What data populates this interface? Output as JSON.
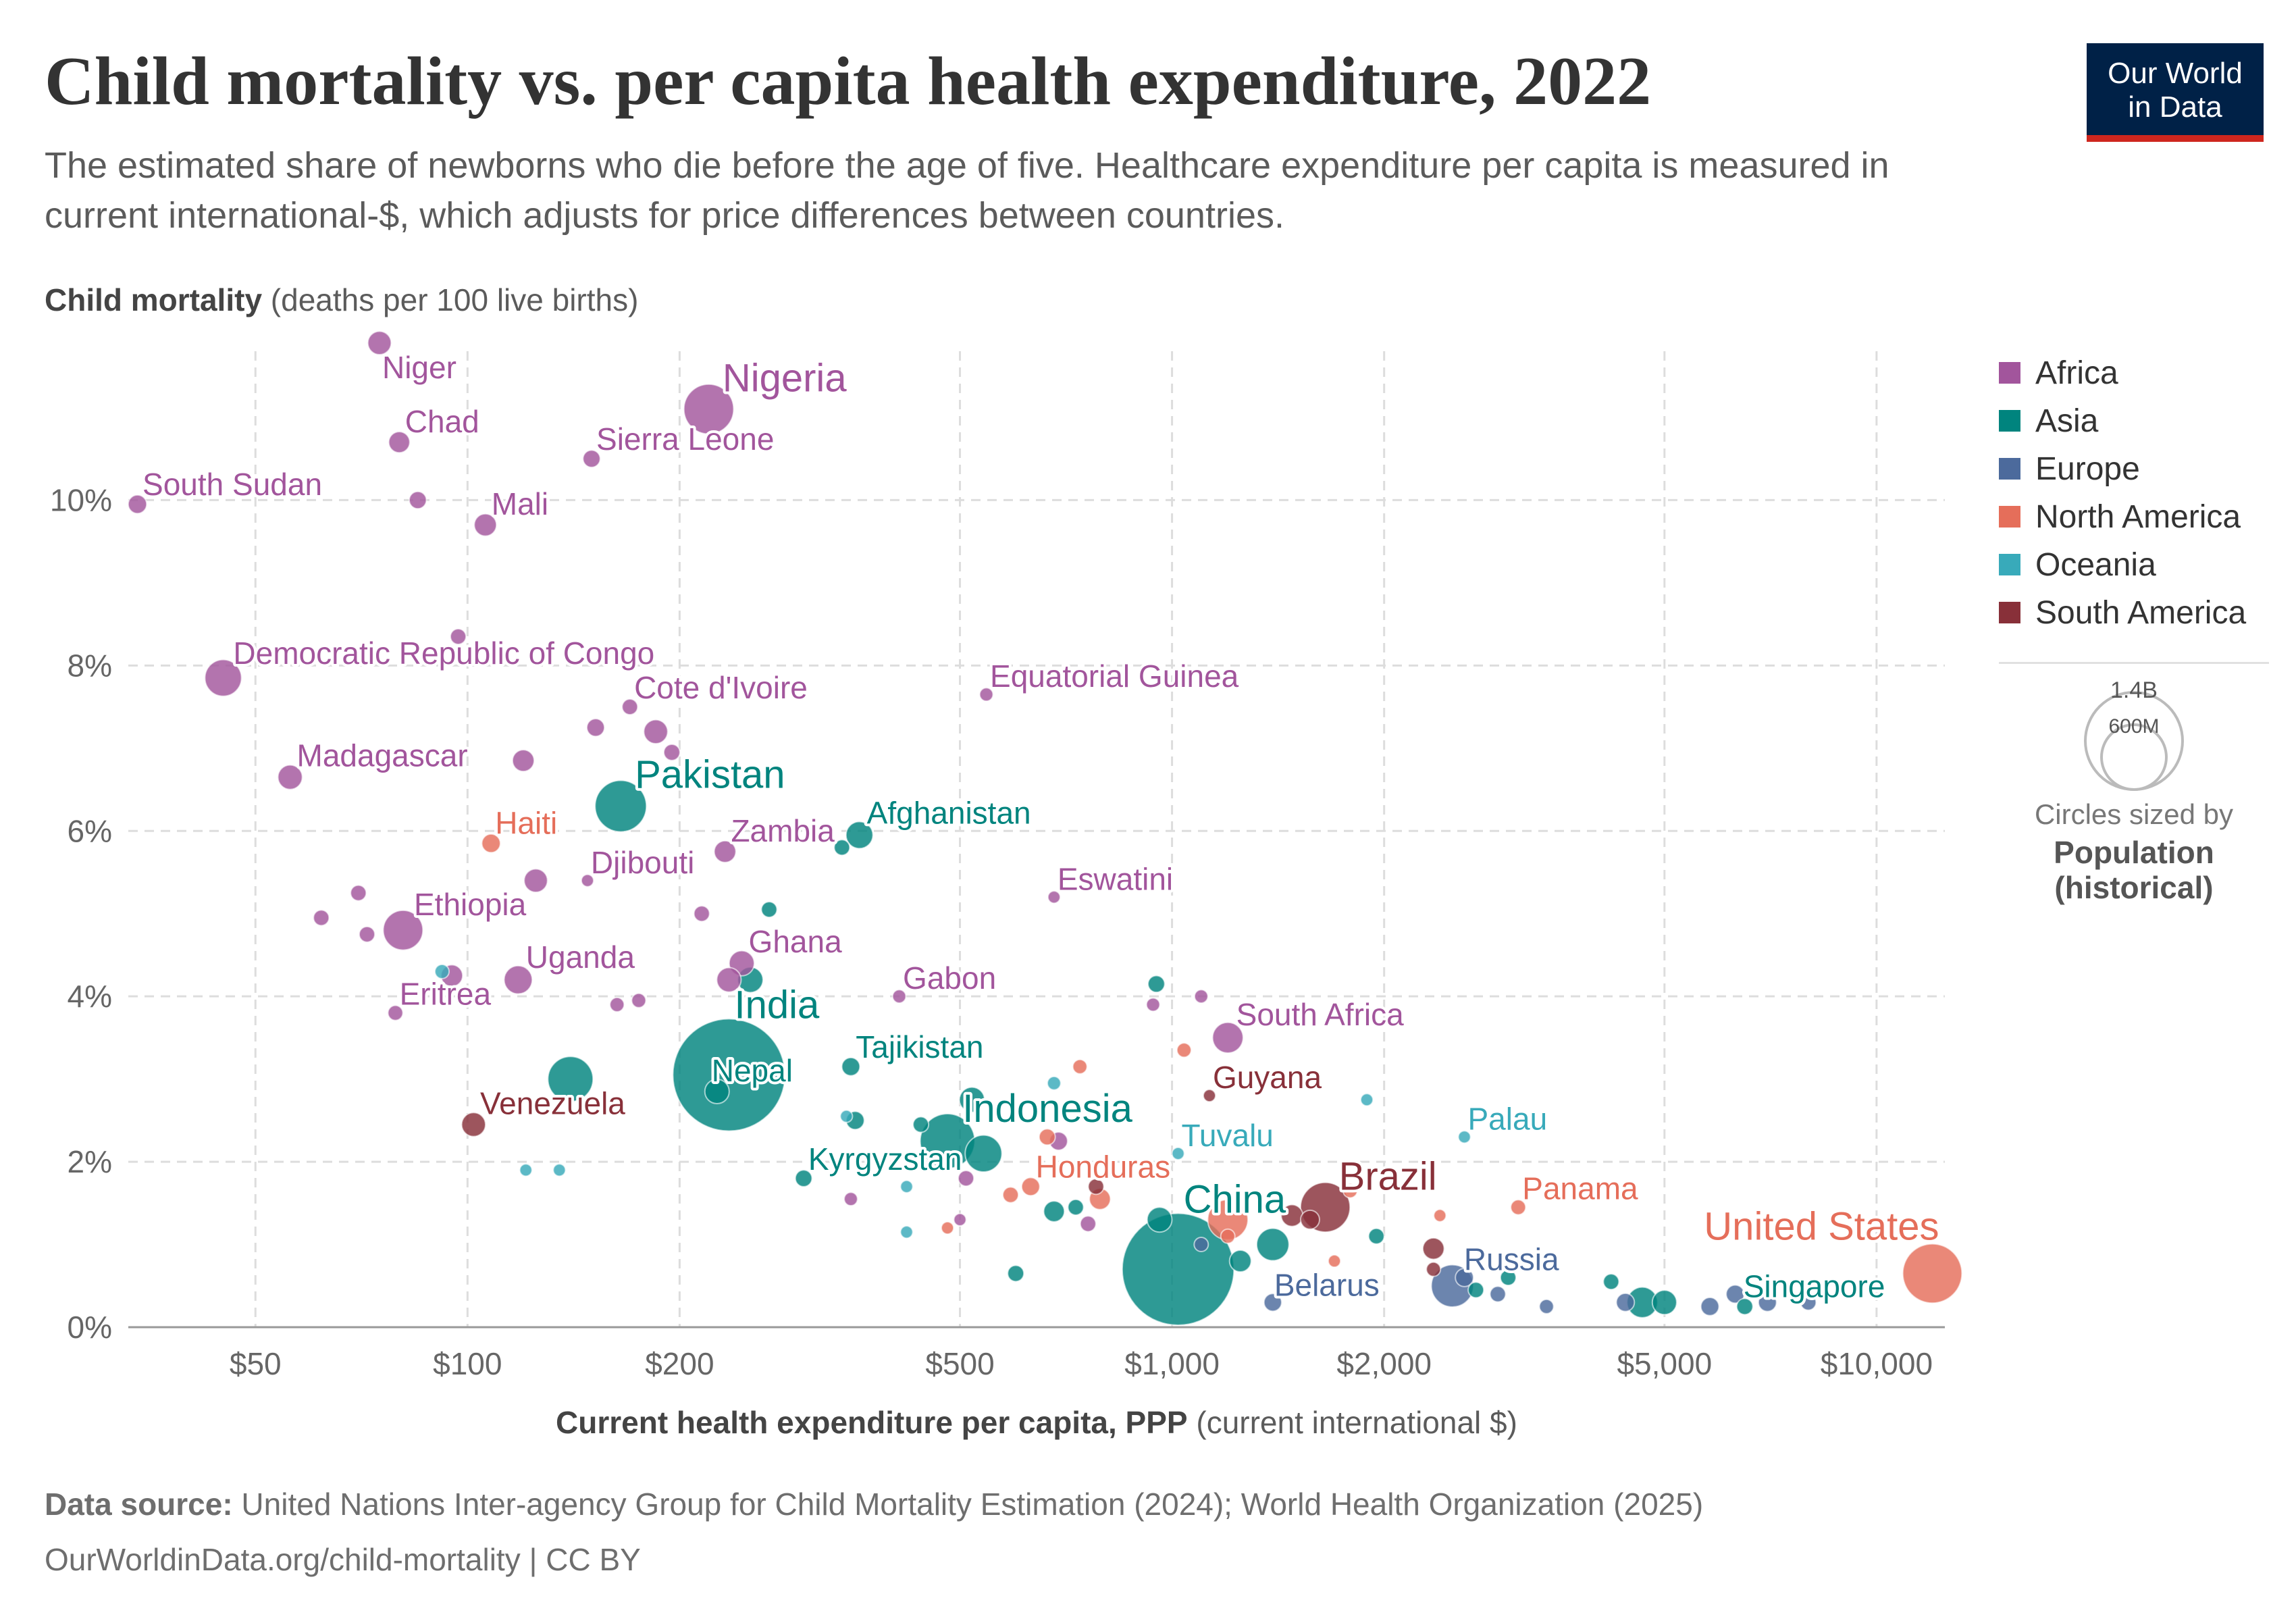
{
  "header": {
    "title": "Child mortality vs. per capita health expenditure, 2022",
    "subtitle": "The estimated share of newborns who die before the age of five. Healthcare expenditure per capita is measured in current international-$, which adjusts for price differences between countries."
  },
  "logo": {
    "line1": "Our World",
    "line2": "in Data"
  },
  "axes": {
    "y_title_bold": "Child mortality",
    "y_title_rest": " (deaths per 100 live births)",
    "x_title_bold": "Current health expenditure per capita, PPP",
    "x_title_rest": " (current international $)"
  },
  "legend": {
    "items": [
      {
        "label": "Africa",
        "color": "#a2559c"
      },
      {
        "label": "Asia",
        "color": "#00847e"
      },
      {
        "label": "Europe",
        "color": "#4c6a9c"
      },
      {
        "label": "North America",
        "color": "#e56e5a"
      },
      {
        "label": "Oceania",
        "color": "#38aaba"
      },
      {
        "label": "South America",
        "color": "#883039"
      }
    ],
    "size_max": "1.4B",
    "size_mid": "600M",
    "size_caption": "Circles sized by",
    "size_variable_line1": "Population",
    "size_variable_line2": "(historical)"
  },
  "footer": {
    "source_label": "Data source:",
    "source_text": " United Nations Inter-agency Group for Child Mortality Estimation (2024); World Health Organization (2025)",
    "url": "OurWorldinData.org/child-mortality | CC BY"
  },
  "chart_data": {
    "type": "scatter",
    "x_scale": "log",
    "xlim": [
      33,
      12500
    ],
    "ylim": [
      0,
      11.8
    ],
    "grid": true,
    "legend_position": "right",
    "x_ticks": [
      {
        "value": 50,
        "label": "$50"
      },
      {
        "value": 100,
        "label": "$100"
      },
      {
        "value": 200,
        "label": "$200"
      },
      {
        "value": 500,
        "label": "$500"
      },
      {
        "value": 1000,
        "label": "$1,000"
      },
      {
        "value": 2000,
        "label": "$2,000"
      },
      {
        "value": 5000,
        "label": "$5,000"
      },
      {
        "value": 10000,
        "label": "$10,000"
      }
    ],
    "y_ticks": [
      {
        "value": 0,
        "label": "0%"
      },
      {
        "value": 2,
        "label": "2%"
      },
      {
        "value": 4,
        "label": "4%"
      },
      {
        "value": 6,
        "label": "6%"
      },
      {
        "value": 8,
        "label": "8%"
      },
      {
        "value": 10,
        "label": "10%"
      }
    ],
    "points": [
      {
        "label": "Niger",
        "region": "Africa",
        "x": 75,
        "y": 11.9,
        "pop": 26
      },
      {
        "label": "Nigeria",
        "region": "Africa",
        "x": 220,
        "y": 11.1,
        "pop": 219
      },
      {
        "label": "Chad",
        "region": "Africa",
        "x": 80,
        "y": 10.7,
        "pop": 18
      },
      {
        "label": "Sierra Leone",
        "region": "Africa",
        "x": 150,
        "y": 10.5,
        "pop": 8
      },
      {
        "label": "South Sudan",
        "region": "Africa",
        "x": 34,
        "y": 9.95,
        "pop": 11
      },
      {
        "label": "",
        "region": "Africa",
        "x": 85,
        "y": 10.0,
        "pop": 8
      },
      {
        "label": "Mali",
        "region": "Africa",
        "x": 106,
        "y": 9.7,
        "pop": 22
      },
      {
        "label": "Democratic Republic of Congo",
        "region": "Africa",
        "x": 45,
        "y": 7.85,
        "pop": 99
      },
      {
        "label": "",
        "region": "Africa",
        "x": 97,
        "y": 8.35,
        "pop": 5
      },
      {
        "label": "Equatorial Guinea",
        "region": "Africa",
        "x": 545,
        "y": 7.65,
        "pop": 2
      },
      {
        "label": "Cote d'Ivoire",
        "region": "Africa",
        "x": 170,
        "y": 7.5,
        "pop": 5
      },
      {
        "label": "",
        "region": "Africa",
        "x": 152,
        "y": 7.25,
        "pop": 9
      },
      {
        "label": "",
        "region": "Africa",
        "x": 185,
        "y": 7.2,
        "pop": 28
      },
      {
        "label": "",
        "region": "Africa",
        "x": 195,
        "y": 6.95,
        "pop": 6
      },
      {
        "label": "Madagascar",
        "region": "Africa",
        "x": 56,
        "y": 6.65,
        "pop": 30
      },
      {
        "label": "",
        "region": "Africa",
        "x": 120,
        "y": 6.85,
        "pop": 20
      },
      {
        "label": "Pakistan",
        "region": "Asia",
        "x": 165,
        "y": 6.3,
        "pop": 236
      },
      {
        "label": "Haiti",
        "region": "North America",
        "x": 108,
        "y": 5.85,
        "pop": 11
      },
      {
        "label": "Zambia",
        "region": "Africa",
        "x": 232,
        "y": 5.75,
        "pop": 20
      },
      {
        "label": "Afghanistan",
        "region": "Asia",
        "x": 360,
        "y": 5.95,
        "pop": 41
      },
      {
        "label": "",
        "region": "Asia",
        "x": 340,
        "y": 5.8,
        "pop": 5
      },
      {
        "label": "",
        "region": "Africa",
        "x": 125,
        "y": 5.4,
        "pop": 26
      },
      {
        "label": "Djibouti",
        "region": "Africa",
        "x": 148,
        "y": 5.4,
        "pop": 1
      },
      {
        "label": "",
        "region": "Africa",
        "x": 70,
        "y": 5.25,
        "pop": 5
      },
      {
        "label": "Eswatini",
        "region": "Africa",
        "x": 680,
        "y": 5.2,
        "pop": 1
      },
      {
        "label": "",
        "region": "Asia",
        "x": 268,
        "y": 5.05,
        "pop": 5
      },
      {
        "label": "",
        "region": "Africa",
        "x": 215,
        "y": 5.0,
        "pop": 5
      },
      {
        "label": "",
        "region": "Africa",
        "x": 62,
        "y": 4.95,
        "pop": 5
      },
      {
        "label": "Ethiopia",
        "region": "Africa",
        "x": 81,
        "y": 4.8,
        "pop": 123
      },
      {
        "label": "",
        "region": "Africa",
        "x": 72,
        "y": 4.75,
        "pop": 5
      },
      {
        "label": "Ghana",
        "region": "Africa",
        "x": 245,
        "y": 4.4,
        "pop": 33
      },
      {
        "label": "",
        "region": "Oceania",
        "x": 92,
        "y": 4.3,
        "pop": 3
      },
      {
        "label": "",
        "region": "Africa",
        "x": 95,
        "y": 4.25,
        "pop": 20
      },
      {
        "label": "Uganda",
        "region": "Africa",
        "x": 118,
        "y": 4.2,
        "pop": 47
      },
      {
        "label": "",
        "region": "Africa",
        "x": 235,
        "y": 4.2,
        "pop": 30
      },
      {
        "label": "",
        "region": "Asia",
        "x": 252,
        "y": 4.2,
        "pop": 34
      },
      {
        "label": "Gabon",
        "region": "Africa",
        "x": 410,
        "y": 4.0,
        "pop": 2
      },
      {
        "label": "",
        "region": "Asia",
        "x": 950,
        "y": 4.15,
        "pop": 7
      },
      {
        "label": "",
        "region": "Africa",
        "x": 1100,
        "y": 4.0,
        "pop": 2
      },
      {
        "label": "",
        "region": "Africa",
        "x": 940,
        "y": 3.9,
        "pop": 2
      },
      {
        "label": "",
        "region": "Africa",
        "x": 175,
        "y": 3.95,
        "pop": 3
      },
      {
        "label": "",
        "region": "Africa",
        "x": 163,
        "y": 3.9,
        "pop": 3
      },
      {
        "label": "Eritrea",
        "region": "Africa",
        "x": 79,
        "y": 3.8,
        "pop": 4
      },
      {
        "label": "South Africa",
        "region": "Africa",
        "x": 1200,
        "y": 3.5,
        "pop": 60
      },
      {
        "label": "India",
        "region": "Asia",
        "x": 235,
        "y": 3.05,
        "pop": 1420
      },
      {
        "label": "Nepal",
        "region": "Asia",
        "x": 226,
        "y": 2.85,
        "pop": 30
      },
      {
        "label": "",
        "region": "Asia",
        "x": 140,
        "y": 3.0,
        "pop": 171
      },
      {
        "label": "Tajikistan",
        "region": "Asia",
        "x": 350,
        "y": 3.15,
        "pop": 10
      },
      {
        "label": "",
        "region": "North America",
        "x": 1040,
        "y": 3.35,
        "pop": 3
      },
      {
        "label": "",
        "region": "North America",
        "x": 740,
        "y": 3.15,
        "pop": 3
      },
      {
        "label": "Guyana",
        "region": "South America",
        "x": 1130,
        "y": 2.8,
        "pop": 1
      },
      {
        "label": "",
        "region": "Oceania",
        "x": 680,
        "y": 2.95,
        "pop": 2
      },
      {
        "label": "Venezuela",
        "region": "South America",
        "x": 102,
        "y": 2.45,
        "pop": 28
      },
      {
        "label": "",
        "region": "Oceania",
        "x": 1890,
        "y": 2.75,
        "pop": 1
      },
      {
        "label": "Indonesia",
        "region": "Asia",
        "x": 480,
        "y": 2.25,
        "pop": 275
      },
      {
        "label": "",
        "region": "Asia",
        "x": 520,
        "y": 2.75,
        "pop": 33
      },
      {
        "label": "",
        "region": "Asia",
        "x": 540,
        "y": 2.1,
        "pop": 100
      },
      {
        "label": "",
        "region": "Asia",
        "x": 355,
        "y": 2.5,
        "pop": 10
      },
      {
        "label": "",
        "region": "Asia",
        "x": 440,
        "y": 2.45,
        "pop": 5
      },
      {
        "label": "",
        "region": "Oceania",
        "x": 345,
        "y": 2.55,
        "pop": 1
      },
      {
        "label": "",
        "region": "Africa",
        "x": 690,
        "y": 2.25,
        "pop": 10
      },
      {
        "label": "",
        "region": "North America",
        "x": 665,
        "y": 2.3,
        "pop": 6
      },
      {
        "label": "Palau",
        "region": "Oceania",
        "x": 2600,
        "y": 2.3,
        "pop": 1
      },
      {
        "label": "Tuvalu",
        "region": "Oceania",
        "x": 1020,
        "y": 2.1,
        "pop": 1
      },
      {
        "label": "",
        "region": "Oceania",
        "x": 121,
        "y": 1.9,
        "pop": 1
      },
      {
        "label": "",
        "region": "Oceania",
        "x": 135,
        "y": 1.9,
        "pop": 1
      },
      {
        "label": "Kyrgyzstan",
        "region": "Asia",
        "x": 300,
        "y": 1.8,
        "pop": 7
      },
      {
        "label": "Honduras",
        "region": "North America",
        "x": 630,
        "y": 1.7,
        "pop": 10
      },
      {
        "label": "Brazil",
        "region": "South America",
        "x": 1650,
        "y": 1.45,
        "pop": 216
      },
      {
        "label": "",
        "region": "South America",
        "x": 1570,
        "y": 1.3,
        "pop": 12
      },
      {
        "label": "",
        "region": "South America",
        "x": 1480,
        "y": 1.35,
        "pop": 20
      },
      {
        "label": "",
        "region": "South America",
        "x": 780,
        "y": 1.7,
        "pop": 5
      },
      {
        "label": "",
        "region": "North America",
        "x": 790,
        "y": 1.55,
        "pop": 18
      },
      {
        "label": "",
        "region": "North America",
        "x": 1790,
        "y": 1.65,
        "pop": 3
      },
      {
        "label": "Panama",
        "region": "North America",
        "x": 3100,
        "y": 1.45,
        "pop": 4
      },
      {
        "label": "",
        "region": "Africa",
        "x": 510,
        "y": 1.8,
        "pop": 5
      },
      {
        "label": "",
        "region": "Oceania",
        "x": 420,
        "y": 1.7,
        "pop": 1
      },
      {
        "label": "",
        "region": "Africa",
        "x": 350,
        "y": 1.55,
        "pop": 2
      },
      {
        "label": "",
        "region": "Oceania",
        "x": 420,
        "y": 1.15,
        "pop": 1
      },
      {
        "label": "",
        "region": "North America",
        "x": 480,
        "y": 1.2,
        "pop": 1
      },
      {
        "label": "",
        "region": "Africa",
        "x": 500,
        "y": 1.3,
        "pop": 1
      },
      {
        "label": "",
        "region": "North America",
        "x": 590,
        "y": 1.6,
        "pop": 5
      },
      {
        "label": "",
        "region": "Asia",
        "x": 680,
        "y": 1.4,
        "pop": 17
      },
      {
        "label": "",
        "region": "Asia",
        "x": 730,
        "y": 1.45,
        "pop": 5
      },
      {
        "label": "",
        "region": "Africa",
        "x": 760,
        "y": 1.25,
        "pop": 5
      },
      {
        "label": "China",
        "region": "Asia",
        "x": 1020,
        "y": 0.7,
        "pop": 1410
      },
      {
        "label": "",
        "region": "Asia",
        "x": 960,
        "y": 1.3,
        "pop": 32
      },
      {
        "label": "",
        "region": "Asia",
        "x": 1390,
        "y": 1.0,
        "pop": 70
      },
      {
        "label": "",
        "region": "Asia",
        "x": 1250,
        "y": 0.8,
        "pop": 20
      },
      {
        "label": "",
        "region": "North America",
        "x": 1200,
        "y": 1.3,
        "pop": 127
      },
      {
        "label": "",
        "region": "North America",
        "x": 1200,
        "y": 1.1,
        "pop": 3
      },
      {
        "label": "",
        "region": "Europe",
        "x": 1100,
        "y": 1.0,
        "pop": 3
      },
      {
        "label": "",
        "region": "Asia",
        "x": 600,
        "y": 0.65,
        "pop": 6
      },
      {
        "label": "Belarus",
        "region": "Europe",
        "x": 1390,
        "y": 0.3,
        "pop": 9
      },
      {
        "label": "",
        "region": "North America",
        "x": 1700,
        "y": 0.8,
        "pop": 1
      },
      {
        "label": "",
        "region": "Asia",
        "x": 1950,
        "y": 1.1,
        "pop": 5
      },
      {
        "label": "Russia",
        "region": "Europe",
        "x": 2500,
        "y": 0.5,
        "pop": 144
      },
      {
        "label": "",
        "region": "South America",
        "x": 2350,
        "y": 0.95,
        "pop": 19
      },
      {
        "label": "",
        "region": "North America",
        "x": 2400,
        "y": 1.35,
        "pop": 1
      },
      {
        "label": "",
        "region": "South America",
        "x": 2350,
        "y": 0.7,
        "pop": 3
      },
      {
        "label": "",
        "region": "Europe",
        "x": 2600,
        "y": 0.6,
        "pop": 10
      },
      {
        "label": "",
        "region": "Asia",
        "x": 2700,
        "y": 0.45,
        "pop": 5
      },
      {
        "label": "",
        "region": "Europe",
        "x": 2900,
        "y": 0.4,
        "pop": 5
      },
      {
        "label": "",
        "region": "Asia",
        "x": 3000,
        "y": 0.6,
        "pop": 5
      },
      {
        "label": "",
        "region": "Europe",
        "x": 3400,
        "y": 0.25,
        "pop": 3
      },
      {
        "label": "",
        "region": "Asia",
        "x": 4200,
        "y": 0.55,
        "pop": 5
      },
      {
        "label": "",
        "region": "Asia",
        "x": 4650,
        "y": 0.3,
        "pop": 60
      },
      {
        "label": "",
        "region": "Europe",
        "x": 4400,
        "y": 0.3,
        "pop": 10
      },
      {
        "label": "",
        "region": "Asia",
        "x": 5000,
        "y": 0.3,
        "pop": 30
      },
      {
        "label": "",
        "region": "Europe",
        "x": 5800,
        "y": 0.25,
        "pop": 10
      },
      {
        "label": "",
        "region": "Europe",
        "x": 6300,
        "y": 0.4,
        "pop": 10
      },
      {
        "label": "Singapore",
        "region": "Asia",
        "x": 6500,
        "y": 0.25,
        "pop": 6
      },
      {
        "label": "",
        "region": "Europe",
        "x": 7000,
        "y": 0.3,
        "pop": 10
      },
      {
        "label": "",
        "region": "Europe",
        "x": 8000,
        "y": 0.3,
        "pop": 5
      },
      {
        "label": "United States",
        "region": "North America",
        "x": 12000,
        "y": 0.65,
        "pop": 333
      }
    ]
  }
}
